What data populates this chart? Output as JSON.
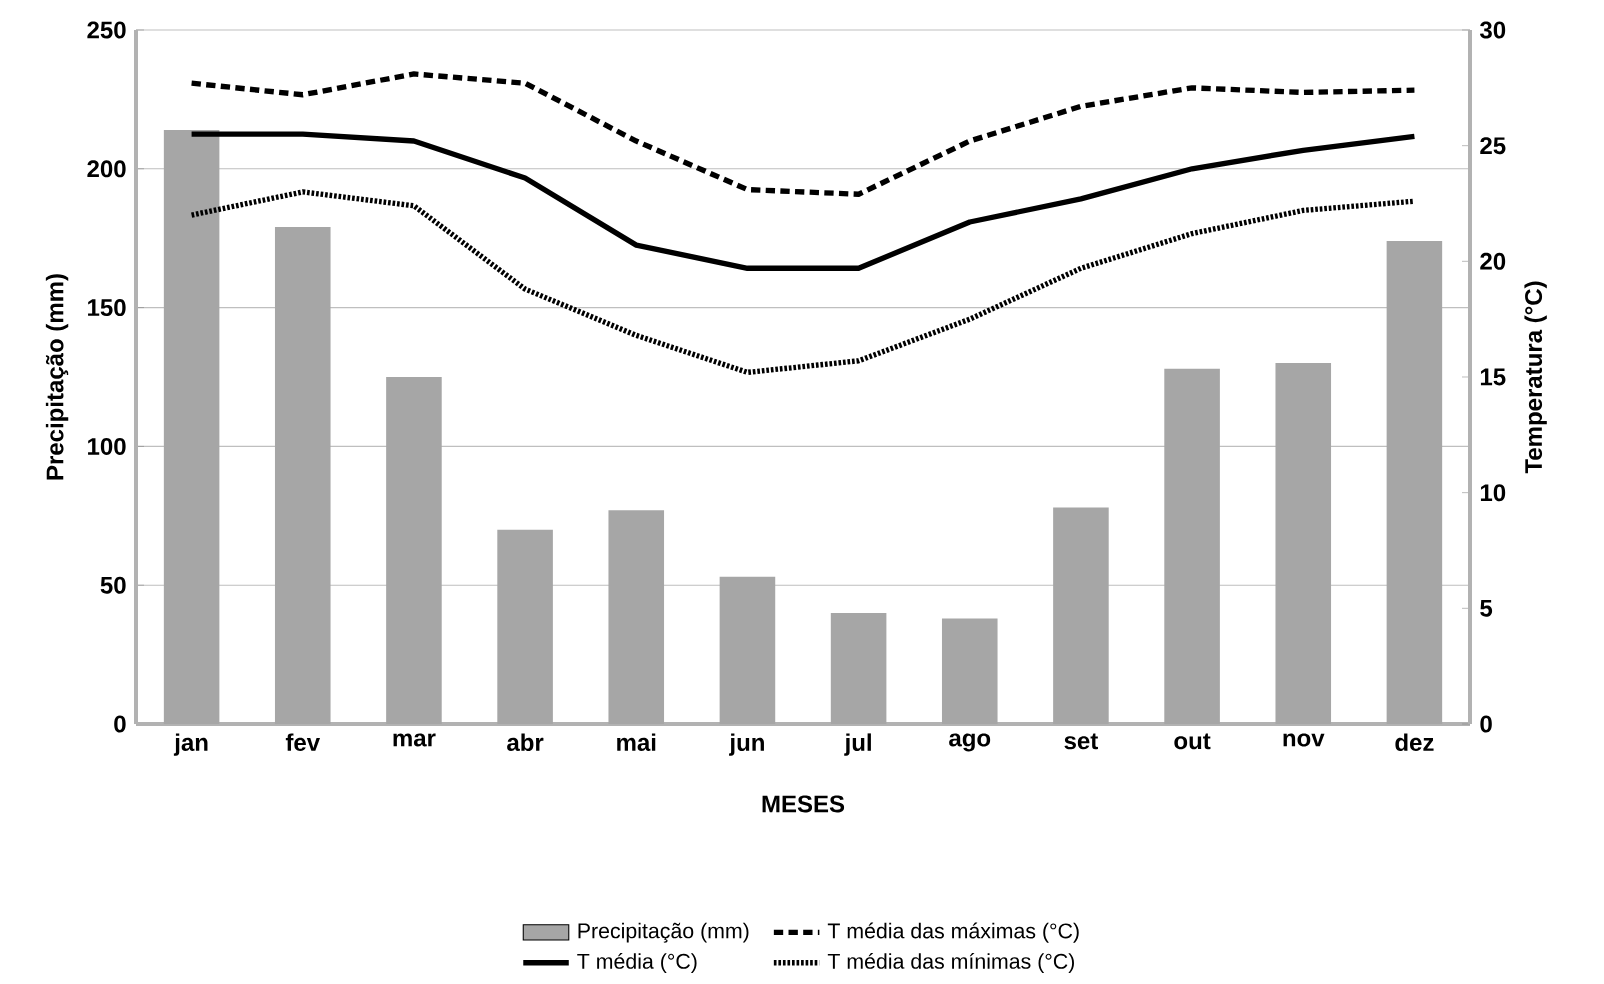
{
  "chart_data": {
    "type": "bar",
    "xlabel": "MESES",
    "ylabel": "Precipitação (mm)",
    "y2label": "Temperatura (°C)",
    "categories": [
      "jan",
      "fev",
      "mar",
      "abr",
      "mai",
      "jun",
      "jul",
      "ago",
      "set",
      "out",
      "nov",
      "dez"
    ],
    "ylim": [
      0,
      250
    ],
    "yticks": [
      0,
      50,
      100,
      150,
      200,
      250
    ],
    "y2lim": [
      0,
      30
    ],
    "y2ticks": [
      0,
      5,
      10,
      15,
      20,
      25,
      30
    ],
    "grid": "y",
    "legend": "bottom",
    "series": [
      {
        "name": "Precipitação (mm)",
        "color": "#a6a6a6",
        "values": [
          214,
          179,
          125,
          70,
          77,
          53,
          40,
          38,
          78,
          128,
          130,
          174
        ]
      },
      {
        "name": "T média das máximas (°C)",
        "type": "line",
        "axis": "y2",
        "color": "#000000",
        "line_style": "dashed",
        "values": [
          27.7,
          27.2,
          28.1,
          27.7,
          25.2,
          23.1,
          22.9,
          25.2,
          26.7,
          27.5,
          27.3,
          27.4
        ]
      },
      {
        "name": "T média (°C)",
        "type": "line",
        "axis": "y2",
        "color": "#000000",
        "line_style": "solid",
        "values": [
          25.5,
          25.5,
          25.2,
          23.6,
          20.7,
          19.7,
          19.7,
          21.7,
          22.7,
          24.0,
          24.8,
          25.4
        ]
      },
      {
        "name": "T média das mínimas (°C)",
        "type": "line",
        "axis": "y2",
        "color": "#000000",
        "line_style": "dotted",
        "values": [
          22.0,
          23.0,
          22.4,
          18.8,
          16.8,
          15.2,
          15.7,
          17.5,
          19.7,
          21.2,
          22.2,
          22.6
        ]
      }
    ]
  }
}
